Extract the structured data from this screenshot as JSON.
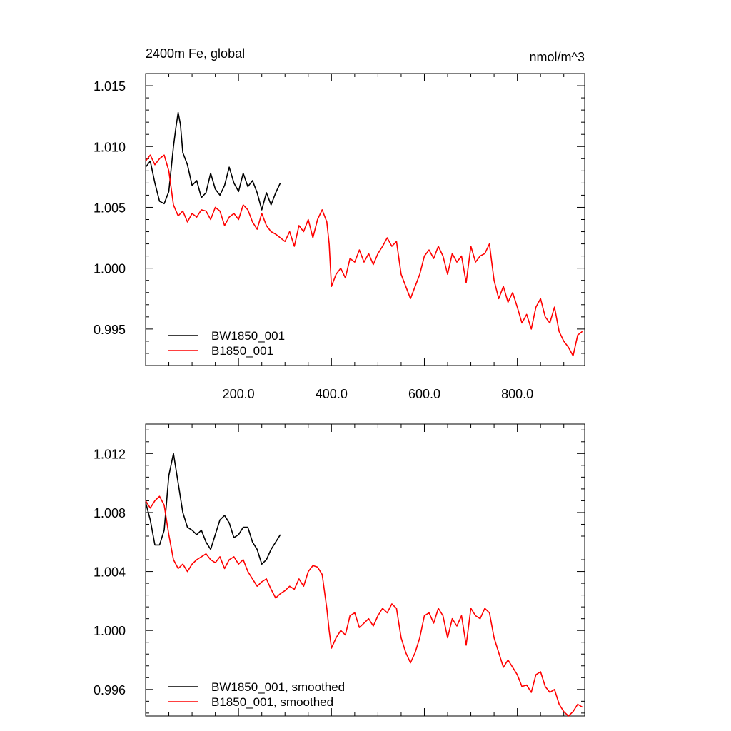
{
  "chart_data": [
    {
      "type": "line",
      "title": "2400m Fe, global",
      "units": "nmol/m^3",
      "xlim": [
        0,
        945
      ],
      "ylim": [
        0.992,
        1.016
      ],
      "xticks": [
        200,
        400,
        600,
        800
      ],
      "xtick_labels": [
        "200.0",
        "400.0",
        "600.0",
        "800.0"
      ],
      "yticks": [
        0.995,
        1.0,
        1.005,
        1.01,
        1.015
      ],
      "ytick_labels": [
        "0.995",
        "1.000",
        "1.005",
        "1.010",
        "1.015"
      ],
      "legend_position": "bottom-left",
      "colors": {
        "BW1850_001": "#000000",
        "B1850_001": "#ff0000"
      },
      "series": [
        {
          "name": "BW1850_001",
          "color": "#000000",
          "x": [
            0,
            10,
            20,
            30,
            40,
            50,
            60,
            65,
            70,
            75,
            80,
            90,
            100,
            110,
            120,
            130,
            140,
            150,
            160,
            170,
            180,
            190,
            200,
            210,
            220,
            230,
            240,
            250,
            260,
            270,
            280,
            290
          ],
          "y": [
            1.0083,
            1.0088,
            1.007,
            1.0055,
            1.0053,
            1.0063,
            1.01,
            1.0115,
            1.0128,
            1.0118,
            1.0095,
            1.0085,
            1.0068,
            1.0072,
            1.0058,
            1.0062,
            1.0078,
            1.0065,
            1.006,
            1.0068,
            1.0083,
            1.007,
            1.0063,
            1.0078,
            1.0067,
            1.0072,
            1.0062,
            1.0048,
            1.0062,
            1.0052,
            1.0062,
            1.007
          ]
        },
        {
          "name": "B1850_001",
          "color": "#ff0000",
          "x": [
            0,
            10,
            20,
            30,
            40,
            50,
            60,
            70,
            80,
            90,
            100,
            110,
            120,
            130,
            140,
            150,
            160,
            170,
            180,
            190,
            200,
            210,
            220,
            230,
            240,
            250,
            260,
            270,
            280,
            290,
            300,
            310,
            320,
            330,
            340,
            350,
            360,
            370,
            380,
            390,
            395,
            400,
            410,
            420,
            430,
            440,
            450,
            460,
            470,
            480,
            490,
            500,
            510,
            520,
            530,
            540,
            550,
            560,
            570,
            580,
            590,
            600,
            610,
            620,
            630,
            640,
            650,
            660,
            670,
            680,
            690,
            700,
            710,
            720,
            730,
            740,
            745,
            750,
            760,
            770,
            780,
            790,
            800,
            810,
            820,
            830,
            840,
            850,
            860,
            870,
            880,
            890,
            900,
            910,
            920,
            930,
            940
          ],
          "y": [
            1.0088,
            1.0093,
            1.0085,
            1.009,
            1.0093,
            1.008,
            1.0052,
            1.0043,
            1.0047,
            1.0038,
            1.0045,
            1.0042,
            1.0048,
            1.0047,
            1.004,
            1.005,
            1.0047,
            1.0035,
            1.0042,
            1.0045,
            1.004,
            1.0052,
            1.0048,
            1.0038,
            1.0032,
            1.0045,
            1.0035,
            1.003,
            1.0028,
            1.0025,
            1.0022,
            1.003,
            1.0018,
            1.0035,
            1.003,
            1.004,
            1.0025,
            1.004,
            1.0048,
            1.0038,
            1.002,
            0.9985,
            0.9995,
            1.0,
            0.9992,
            1.0008,
            1.0005,
            1.0015,
            1.0005,
            1.0012,
            1.0003,
            1.0012,
            1.0018,
            1.0025,
            1.0018,
            1.0022,
            0.9995,
            0.9985,
            0.9975,
            0.9985,
            0.9995,
            1.001,
            1.0015,
            1.0008,
            1.0018,
            1.001,
            0.9995,
            1.0012,
            1.0005,
            1.001,
            0.9988,
            1.0018,
            1.0005,
            1.001,
            1.0012,
            1.002,
            1.0005,
            0.999,
            0.9975,
            0.9985,
            0.9972,
            0.998,
            0.9968,
            0.9955,
            0.9962,
            0.995,
            0.9968,
            0.9975,
            0.996,
            0.9955,
            0.9968,
            0.9948,
            0.994,
            0.9935,
            0.9928,
            0.9945,
            0.9948
          ]
        }
      ]
    },
    {
      "type": "line",
      "xlim": [
        0,
        945
      ],
      "ylim": [
        0.9942,
        1.014
      ],
      "xticks": [
        200,
        400,
        600,
        800
      ],
      "yticks": [
        0.996,
        1.0,
        1.004,
        1.008,
        1.012
      ],
      "ytick_labels": [
        "0.996",
        "1.000",
        "1.004",
        "1.008",
        "1.012"
      ],
      "legend_position": "bottom-left",
      "series": [
        {
          "name": "BW1850_001, smoothed",
          "color": "#000000",
          "x": [
            0,
            10,
            20,
            30,
            40,
            50,
            60,
            70,
            80,
            90,
            100,
            110,
            120,
            130,
            140,
            150,
            160,
            170,
            180,
            190,
            200,
            210,
            220,
            230,
            240,
            250,
            260,
            270,
            280,
            290
          ],
          "y": [
            1.0087,
            1.0075,
            1.0058,
            1.0058,
            1.0068,
            1.0105,
            1.012,
            1.01,
            1.008,
            1.007,
            1.0068,
            1.0065,
            1.0068,
            1.006,
            1.0055,
            1.0065,
            1.0075,
            1.0078,
            1.0073,
            1.0063,
            1.0065,
            1.007,
            1.007,
            1.006,
            1.0055,
            1.0045,
            1.0048,
            1.0055,
            1.006,
            1.0065
          ]
        },
        {
          "name": "B1850_001, smoothed",
          "color": "#ff0000",
          "x": [
            0,
            10,
            20,
            30,
            40,
            50,
            60,
            70,
            80,
            90,
            100,
            110,
            120,
            130,
            140,
            150,
            160,
            170,
            180,
            190,
            200,
            210,
            220,
            230,
            240,
            250,
            260,
            270,
            280,
            290,
            300,
            310,
            320,
            330,
            340,
            350,
            360,
            370,
            380,
            390,
            395,
            400,
            410,
            420,
            430,
            440,
            450,
            460,
            470,
            480,
            490,
            500,
            510,
            520,
            530,
            540,
            550,
            560,
            570,
            580,
            590,
            600,
            610,
            620,
            630,
            640,
            650,
            660,
            670,
            680,
            690,
            700,
            710,
            720,
            730,
            740,
            750,
            760,
            770,
            780,
            790,
            800,
            810,
            820,
            830,
            840,
            850,
            860,
            870,
            880,
            890,
            900,
            910,
            920,
            930,
            940
          ],
          "y": [
            1.0088,
            1.0083,
            1.0088,
            1.0091,
            1.0085,
            1.0065,
            1.0048,
            1.0042,
            1.0045,
            1.004,
            1.0045,
            1.0048,
            1.005,
            1.0052,
            1.0048,
            1.0046,
            1.005,
            1.0042,
            1.0048,
            1.005,
            1.0045,
            1.0048,
            1.004,
            1.0035,
            1.003,
            1.0033,
            1.0035,
            1.0028,
            1.0022,
            1.0025,
            1.0027,
            1.003,
            1.0028,
            1.0035,
            1.003,
            1.004,
            1.0044,
            1.0043,
            1.0038,
            1.0015,
            1.0,
            0.9988,
            0.9995,
            1.0,
            0.9997,
            1.001,
            1.0012,
            1.0002,
            1.0005,
            1.0008,
            1.0003,
            1.001,
            1.0015,
            1.0012,
            1.0018,
            1.0015,
            0.9995,
            0.9985,
            0.9978,
            0.9985,
            0.9995,
            1.001,
            1.0012,
            1.0005,
            1.0015,
            1.001,
            0.9995,
            1.0008,
            1.0003,
            1.001,
            0.999,
            1.0015,
            1.001,
            1.0008,
            1.0015,
            1.0012,
            0.9995,
            0.9985,
            0.9975,
            0.998,
            0.9975,
            0.997,
            0.9962,
            0.9963,
            0.9958,
            0.997,
            0.9972,
            0.9962,
            0.9958,
            0.996,
            0.995,
            0.9945,
            0.9942,
            0.9945,
            0.995,
            0.9948
          ]
        }
      ]
    }
  ]
}
